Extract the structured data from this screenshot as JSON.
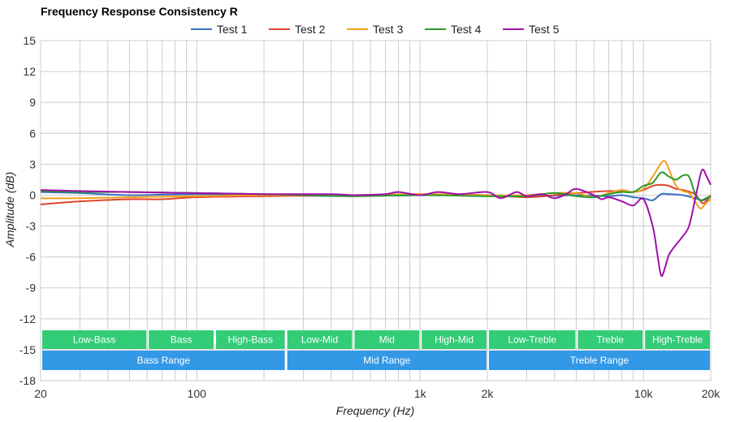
{
  "chart_data": {
    "type": "line",
    "title": "Frequency Response Consistency R",
    "xlabel": "Frequency (Hz)",
    "ylabel": "Amplitude (dB)",
    "x_scale": "log",
    "xlim": [
      20,
      20000
    ],
    "ylim": [
      -18,
      15
    ],
    "grid": true,
    "legend_position": "top-center",
    "x_ticks": [
      {
        "value": 20,
        "label": "20"
      },
      {
        "value": 100,
        "label": "100"
      },
      {
        "value": 1000,
        "label": "1k"
      },
      {
        "value": 2000,
        "label": "2k"
      },
      {
        "value": 10000,
        "label": "10k"
      },
      {
        "value": 20000,
        "label": "20k"
      }
    ],
    "y_ticks": [
      15,
      12,
      9,
      6,
      3,
      0,
      -3,
      -6,
      -9,
      -12,
      -15,
      -18
    ],
    "series": [
      {
        "name": "Test 1",
        "color": "#3a6fc4",
        "x": [
          20,
          30,
          50,
          100,
          200,
          500,
          1000,
          2000,
          3000,
          5000,
          7000,
          8000,
          9000,
          10000,
          11000,
          12000,
          13000,
          15000,
          17000,
          18500,
          20000
        ],
        "y": [
          0.3,
          0.2,
          0.0,
          0.1,
          0.0,
          -0.1,
          0.0,
          0.0,
          -0.1,
          0.0,
          -0.1,
          0.0,
          -0.2,
          -0.3,
          -0.5,
          0.1,
          0.1,
          0.0,
          -0.3,
          -0.5,
          -0.2
        ]
      },
      {
        "name": "Test 2",
        "color": "#e0452a",
        "x": [
          20,
          30,
          50,
          70,
          100,
          200,
          500,
          1000,
          2000,
          3000,
          4000,
          5000,
          7000,
          9000,
          10000,
          11000,
          12000,
          13000,
          14000,
          15000,
          17000,
          18500,
          20000
        ],
        "y": [
          -0.9,
          -0.6,
          -0.4,
          -0.4,
          -0.2,
          -0.1,
          0.0,
          0.1,
          0.0,
          -0.2,
          0.0,
          0.2,
          0.4,
          0.3,
          0.5,
          0.9,
          1.0,
          0.9,
          0.6,
          0.5,
          0.1,
          -0.8,
          0.0
        ]
      },
      {
        "name": "Test 3",
        "color": "#f0a020",
        "x": [
          20,
          30,
          50,
          100,
          200,
          500,
          1000,
          2000,
          3000,
          4000,
          5000,
          6000,
          7000,
          8000,
          9000,
          10000,
          11000,
          12000,
          12500,
          13000,
          14000,
          15000,
          16000,
          17000,
          18000,
          19000,
          20000
        ],
        "y": [
          -0.3,
          -0.3,
          -0.2,
          -0.1,
          0.0,
          0.0,
          0.1,
          0.0,
          0.0,
          0.2,
          0.2,
          -0.2,
          0.2,
          0.5,
          0.3,
          0.6,
          1.8,
          3.1,
          3.3,
          2.5,
          0.9,
          0.4,
          0.2,
          -0.6,
          -1.3,
          -0.8,
          -0.4
        ]
      },
      {
        "name": "Test 4",
        "color": "#2a9a2a",
        "x": [
          20,
          30,
          50,
          100,
          200,
          300,
          500,
          1000,
          2000,
          3000,
          4000,
          5000,
          6000,
          7000,
          8000,
          9000,
          10000,
          11000,
          12000,
          13000,
          14000,
          15000,
          16000,
          17000,
          18000,
          19000,
          20000
        ],
        "y": [
          0.4,
          0.3,
          0.3,
          0.2,
          0.1,
          0.0,
          -0.1,
          0.0,
          -0.1,
          -0.1,
          0.2,
          -0.1,
          -0.2,
          0.1,
          0.3,
          0.3,
          0.9,
          1.2,
          2.2,
          1.8,
          1.5,
          1.9,
          1.8,
          0.2,
          -0.5,
          -0.3,
          -0.1
        ]
      },
      {
        "name": "Test 5",
        "color": "#a010a8",
        "x": [
          20,
          30,
          50,
          100,
          200,
          400,
          500,
          700,
          800,
          1000,
          1200,
          1500,
          2000,
          2300,
          2700,
          3000,
          3500,
          4000,
          4500,
          5000,
          6000,
          6500,
          7000,
          8000,
          9000,
          10000,
          11000,
          11500,
          12000,
          12500,
          13000,
          14000,
          15000,
          16000,
          17000,
          18000,
          18500,
          19000,
          20000
        ],
        "y": [
          0.5,
          0.4,
          0.3,
          0.2,
          0.1,
          0.1,
          0.0,
          0.1,
          0.3,
          0.0,
          0.3,
          0.1,
          0.3,
          -0.3,
          0.3,
          -0.1,
          0.1,
          -0.3,
          0.1,
          0.6,
          0.0,
          -0.4,
          -0.2,
          -0.6,
          -1.0,
          -0.4,
          -3.0,
          -5.5,
          -7.8,
          -7.0,
          -5.8,
          -4.8,
          -4.0,
          -3.0,
          -0.5,
          2.0,
          2.5,
          2.0,
          1.0
        ]
      }
    ],
    "bands_row1": [
      {
        "label": "Low-Bass",
        "from": 20,
        "to": 60
      },
      {
        "label": "Bass",
        "from": 60,
        "to": 120
      },
      {
        "label": "High-Bass",
        "from": 120,
        "to": 250
      },
      {
        "label": "Low-Mid",
        "from": 250,
        "to": 500
      },
      {
        "label": "Mid",
        "from": 500,
        "to": 1000
      },
      {
        "label": "High-Mid",
        "from": 1000,
        "to": 2000
      },
      {
        "label": "Low-Treble",
        "from": 2000,
        "to": 5000
      },
      {
        "label": "Treble",
        "from": 5000,
        "to": 10000
      },
      {
        "label": "High-Treble",
        "from": 10000,
        "to": 20000
      }
    ],
    "bands_row2": [
      {
        "label": "Bass Range",
        "from": 20,
        "to": 250
      },
      {
        "label": "Mid Range",
        "from": 250,
        "to": 2000
      },
      {
        "label": "Treble Range",
        "from": 2000,
        "to": 20000
      }
    ],
    "band_colors": {
      "row1": "#33cc77",
      "row2": "#3399e6"
    }
  }
}
